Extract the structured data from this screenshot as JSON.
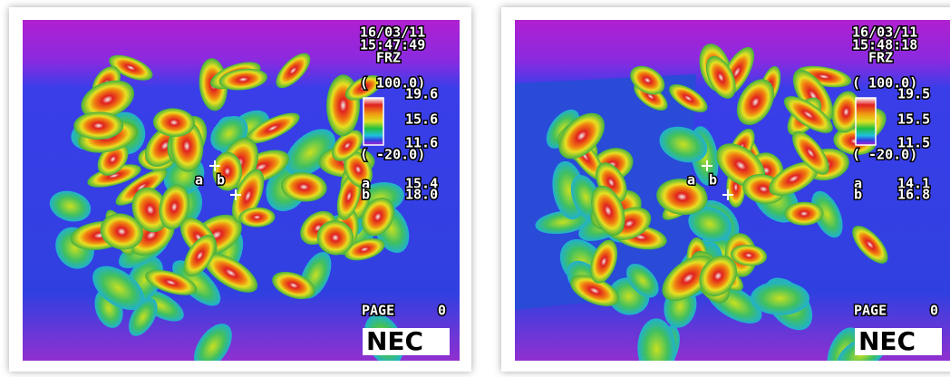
{
  "panels": [
    {
      "date": "16/03/11",
      "time": "15:47:49",
      "mode": "FRZ",
      "scale": {
        "max": "( 100.0)",
        "upper": "19.6",
        "mid": "15.6",
        "lower": "11.6",
        "min": "( -20.0)"
      },
      "cursor_labels": [
        "a",
        "b"
      ],
      "readouts": [
        {
          "label": "a",
          "value": "15.4"
        },
        {
          "label": "b",
          "value": "18.0"
        }
      ],
      "page": "PAGE",
      "page_number": "0",
      "brand": "NEC"
    },
    {
      "date": "16/03/11",
      "time": "15:48:18",
      "mode": "FRZ",
      "scale": {
        "max": "( 100.0)",
        "upper": "19.5",
        "mid": "15.5",
        "lower": "11.5",
        "min": "( -20.0)"
      },
      "cursor_labels": [
        "a",
        "b"
      ],
      "readouts": [
        {
          "label": "a",
          "value": "14.1"
        },
        {
          "label": "b",
          "value": "16.8"
        }
      ],
      "page": "PAGE",
      "page_number": "0",
      "brand": "NEC"
    }
  ]
}
